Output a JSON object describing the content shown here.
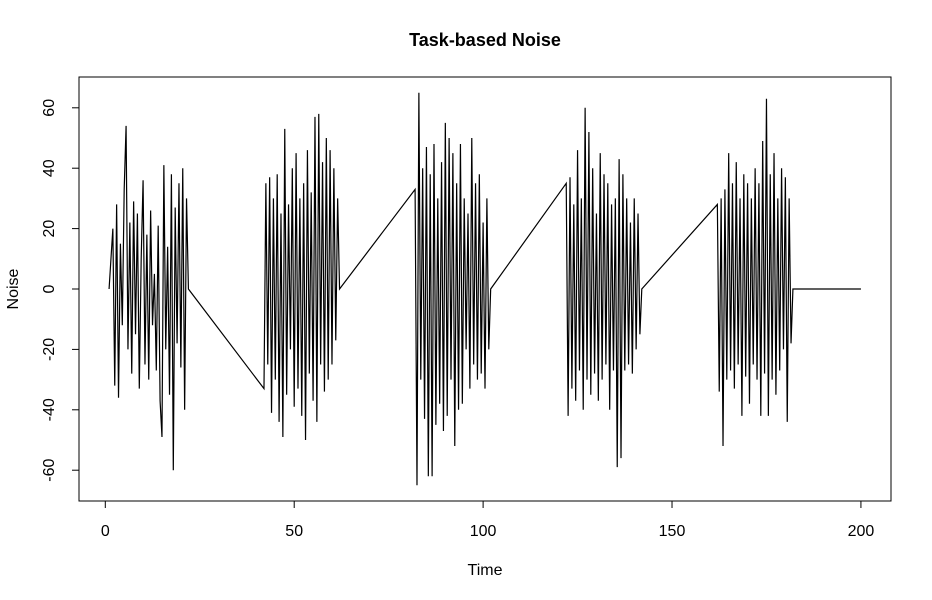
{
  "chart_data": {
    "type": "line",
    "title": "Task-based Noise",
    "xlabel": "Time",
    "ylabel": "Noise",
    "color": "#000000",
    "x": [
      1,
      2,
      2.5,
      3,
      3.5,
      4,
      4.5,
      5,
      5.5,
      6,
      6.5,
      7,
      7.5,
      8,
      8.5,
      9,
      9.5,
      10,
      10.5,
      11,
      11.5,
      12,
      12.5,
      13,
      13.5,
      14,
      14.5,
      15,
      15.5,
      16,
      16.5,
      17,
      17.5,
      18,
      18.5,
      19,
      19.5,
      20,
      20.5,
      21,
      21.5,
      22,
      42,
      42.5,
      43,
      43.5,
      44,
      44.5,
      45,
      45.5,
      46,
      46.5,
      47,
      47.5,
      48,
      48.5,
      49,
      49.5,
      50,
      50.5,
      51,
      51.5,
      52,
      52.5,
      53,
      53.5,
      54,
      54.5,
      55,
      55.5,
      56,
      56.5,
      57,
      57.5,
      58,
      58.5,
      59,
      59.5,
      60,
      60.5,
      61,
      61.5,
      62,
      82,
      82.5,
      83,
      83.5,
      84,
      84.5,
      85,
      85.5,
      86,
      86.5,
      87,
      87.5,
      88,
      88.5,
      89,
      89.5,
      90,
      90.5,
      91,
      91.5,
      92,
      92.5,
      93,
      93.5,
      94,
      94.5,
      95,
      95.5,
      96,
      96.5,
      97,
      97.5,
      98,
      98.5,
      99,
      99.5,
      100,
      100.5,
      101,
      101.5,
      102,
      122,
      122.5,
      123,
      123.5,
      124,
      124.5,
      125,
      125.5,
      126,
      126.5,
      127,
      127.5,
      128,
      128.5,
      129,
      129.5,
      130,
      130.5,
      131,
      131.5,
      132,
      132.5,
      133,
      133.5,
      134,
      134.5,
      135,
      135.5,
      136,
      136.5,
      137,
      137.5,
      138,
      138.5,
      139,
      139.5,
      140,
      140.5,
      141,
      141.5,
      142,
      162,
      162.5,
      163,
      163.5,
      164,
      164.5,
      165,
      165.5,
      166,
      166.5,
      167,
      167.5,
      168,
      168.5,
      169,
      169.5,
      170,
      170.5,
      171,
      171.5,
      172,
      172.5,
      173,
      173.5,
      174,
      174.5,
      175,
      175.5,
      176,
      176.5,
      177,
      177.5,
      178,
      178.5,
      179,
      179.5,
      180,
      180.5,
      181,
      181.5,
      182,
      200
    ],
    "values": [
      0,
      20,
      -32,
      28,
      -36,
      15,
      -12,
      33,
      54,
      -20,
      22,
      -28,
      29,
      -15,
      25,
      -33,
      10,
      36,
      -25,
      18,
      -30,
      26,
      -12,
      5,
      -27,
      21,
      -37,
      -49,
      41,
      -20,
      14,
      -35,
      38,
      -60,
      27,
      -18,
      35,
      -26,
      40,
      -40,
      30,
      0,
      -33,
      35,
      -25,
      37,
      -41,
      30,
      -30,
      38,
      -44,
      25,
      -49,
      53,
      -35,
      28,
      -20,
      40,
      -39,
      45,
      -33,
      30,
      -42,
      35,
      -50,
      46,
      -28,
      32,
      -37,
      57,
      -44,
      58,
      -25,
      42,
      -34,
      50,
      -30,
      46,
      -25,
      40,
      -17,
      30,
      0,
      33,
      -65,
      65,
      -30,
      40,
      -43,
      47,
      -62,
      38,
      -62,
      48,
      -45,
      30,
      -38,
      42,
      -47,
      55,
      -42,
      50,
      -30,
      45,
      -52,
      35,
      -40,
      48,
      -38,
      30,
      -20,
      25,
      -33,
      50,
      -25,
      35,
      -30,
      38,
      -28,
      22,
      -33,
      30,
      -20,
      0,
      35,
      -42,
      37,
      -33,
      28,
      -37,
      46,
      -27,
      30,
      -40,
      60,
      -30,
      52,
      -35,
      40,
      -28,
      25,
      -37,
      45,
      -30,
      38,
      -25,
      35,
      -40,
      28,
      -27,
      30,
      -59,
      43,
      -56,
      38,
      -27,
      30,
      -25,
      22,
      -28,
      30,
      -20,
      25,
      -15,
      0,
      28,
      -34,
      30,
      -52,
      33,
      -30,
      45,
      -27,
      35,
      -33,
      42,
      -25,
      30,
      -42,
      38,
      -29,
      35,
      -38,
      30,
      -25,
      40,
      -30,
      35,
      -42,
      49,
      -28,
      63,
      -42,
      38,
      -30,
      45,
      -35,
      30,
      -27,
      40,
      -20,
      37,
      -44,
      30,
      -18,
      0,
      0
    ],
    "xlim": [
      -6.96,
      207.96
    ],
    "ylim": [
      -70.2,
      70.2
    ],
    "xticks": [
      0,
      50,
      100,
      150,
      200
    ],
    "yticks": [
      -60,
      -40,
      -20,
      0,
      20,
      40,
      60
    ]
  }
}
